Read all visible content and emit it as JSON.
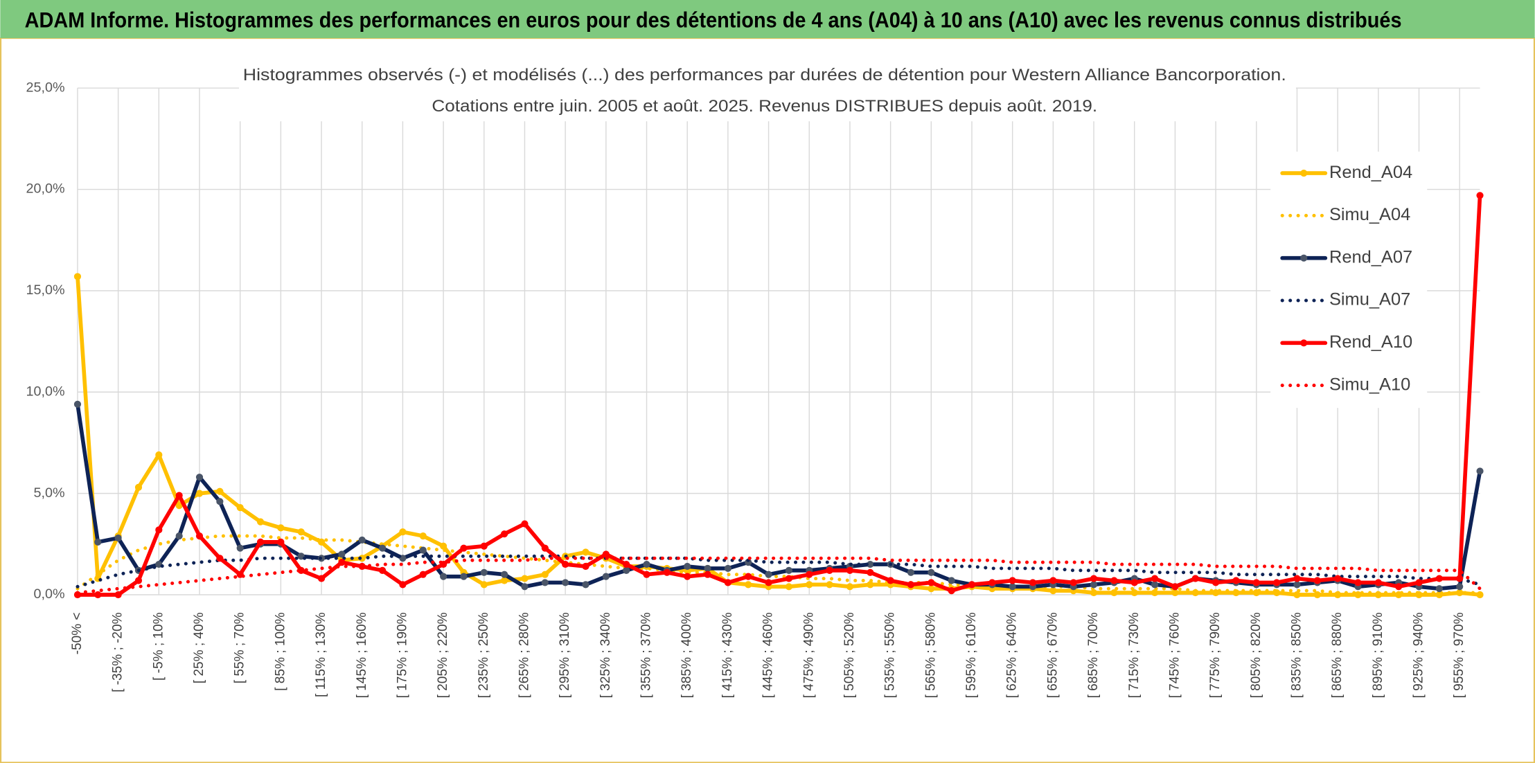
{
  "header": {
    "title": "ADAM Informe. Histogrammes des performances en euros pour des détentions de 4 ans (A04) à 10 ans (A10) avec les revenus connus distribués"
  },
  "chart_data": {
    "type": "line",
    "title": [
      "Histogrammes observés (-) et modélisés (...) des performances par durées de détention pour Western Alliance Bancorporation.",
      "Cotations entre juin. 2005 et août. 2025. Revenus DISTRIBUES depuis août. 2019."
    ],
    "categories": [
      "-50% <",
      null,
      "[ -35% ; -20%",
      null,
      "[ -5% ; 10%",
      null,
      "[ 25% ; 40%",
      null,
      "[ 55% ; 70%",
      null,
      "[ 85% ; 100%",
      null,
      "[ 115% ; 130%",
      null,
      "[ 145% ; 160%",
      null,
      "[ 175% ; 190%",
      null,
      "[ 205% ; 220%",
      null,
      "[ 235% ; 250%",
      null,
      "[ 265% ; 280%",
      null,
      "[ 295% ; 310%",
      null,
      "[ 325% ; 340%",
      null,
      "[ 355% ; 370%",
      null,
      "[ 385% ; 400%",
      null,
      "[ 415% ; 430%",
      null,
      "[ 445% ; 460%",
      null,
      "[ 475% ; 490%",
      null,
      "[ 505% ; 520%",
      null,
      "[ 535% ; 550%",
      null,
      "[ 565% ; 580%",
      null,
      "[ 595% ; 610%",
      null,
      "[ 625% ; 640%",
      null,
      "[ 655% ; 670%",
      null,
      "[ 685% ; 700%",
      null,
      "[ 715% ; 730%",
      null,
      "[ 745% ; 760%",
      null,
      "[ 775% ; 790%",
      null,
      "[ 805% ; 820%",
      null,
      "[ 835% ; 850%",
      null,
      "[ 865% ; 880%",
      null,
      "[ 895% ; 910%",
      null,
      "[ 925% ; 940%",
      null,
      "[ 955% ; 970%",
      null
    ],
    "series": [
      {
        "name": "Rend_A04",
        "color": "#ffc000",
        "marker": "#ffc000",
        "style": "solid",
        "values": [
          15.7,
          0.8,
          2.9,
          5.3,
          6.9,
          4.4,
          5.0,
          5.1,
          4.3,
          3.6,
          3.3,
          3.1,
          2.6,
          1.7,
          1.8,
          2.4,
          3.1,
          2.9,
          2.4,
          1.1,
          0.5,
          0.7,
          0.8,
          1.0,
          1.9,
          2.1,
          1.8,
          1.4,
          1.4,
          1.3,
          1.2,
          1.3,
          0.6,
          0.5,
          0.4,
          0.4,
          0.5,
          0.5,
          0.4,
          0.5,
          0.5,
          0.4,
          0.3,
          0.3,
          0.4,
          0.3,
          0.3,
          0.3,
          0.2,
          0.2,
          0.1,
          0.1,
          0.1,
          0.1,
          0.1,
          0.1,
          0.1,
          0.1,
          0.1,
          0.1,
          0.0,
          0.0,
          0.0,
          0.0,
          0.0,
          0.0,
          0.0,
          0.0,
          0.1,
          0.0
        ]
      },
      {
        "name": "Simu_A04",
        "color": "#ffc000",
        "style": "dotted",
        "values": [
          0.3,
          1.0,
          1.7,
          2.2,
          2.5,
          2.7,
          2.8,
          2.9,
          2.9,
          2.9,
          2.8,
          2.8,
          2.7,
          2.7,
          2.6,
          2.5,
          2.4,
          2.3,
          2.2,
          2.1,
          2.0,
          1.9,
          1.8,
          1.7,
          1.6,
          1.5,
          1.4,
          1.3,
          1.3,
          1.2,
          1.1,
          1.1,
          1.0,
          1.0,
          0.9,
          0.9,
          0.8,
          0.8,
          0.7,
          0.7,
          0.6,
          0.6,
          0.6,
          0.5,
          0.5,
          0.5,
          0.4,
          0.4,
          0.4,
          0.4,
          0.3,
          0.3,
          0.3,
          0.3,
          0.3,
          0.2,
          0.2,
          0.2,
          0.2,
          0.2,
          0.2,
          0.2,
          0.1,
          0.1,
          0.1,
          0.1,
          0.1,
          0.1,
          0.1,
          0.1
        ]
      },
      {
        "name": "Rend_A07",
        "color": "#0e2356",
        "marker": "#4a5568",
        "style": "solid",
        "values": [
          9.4,
          2.6,
          2.8,
          1.2,
          1.5,
          2.9,
          5.8,
          4.6,
          2.3,
          2.5,
          2.5,
          1.9,
          1.8,
          2.0,
          2.7,
          2.3,
          1.8,
          2.2,
          0.9,
          0.9,
          1.1,
          1.0,
          0.4,
          0.6,
          0.6,
          0.5,
          0.9,
          1.2,
          1.5,
          1.2,
          1.4,
          1.3,
          1.3,
          1.6,
          1.0,
          1.2,
          1.2,
          1.3,
          1.4,
          1.5,
          1.5,
          1.1,
          1.1,
          0.7,
          0.5,
          0.5,
          0.4,
          0.4,
          0.5,
          0.4,
          0.5,
          0.6,
          0.8,
          0.5,
          0.4,
          0.8,
          0.7,
          0.6,
          0.5,
          0.5,
          0.5,
          0.6,
          0.7,
          0.4,
          0.5,
          0.6,
          0.4,
          0.3,
          0.4,
          6.1
        ]
      },
      {
        "name": "Simu_A07",
        "color": "#0e2356",
        "style": "dotted",
        "values": [
          0.4,
          0.7,
          1.0,
          1.2,
          1.4,
          1.5,
          1.6,
          1.7,
          1.7,
          1.8,
          1.8,
          1.8,
          1.8,
          1.8,
          1.8,
          1.9,
          1.9,
          1.9,
          1.9,
          1.9,
          1.9,
          1.9,
          1.9,
          1.9,
          1.9,
          1.8,
          1.8,
          1.8,
          1.8,
          1.8,
          1.8,
          1.7,
          1.7,
          1.7,
          1.6,
          1.6,
          1.6,
          1.6,
          1.5,
          1.5,
          1.5,
          1.5,
          1.4,
          1.4,
          1.4,
          1.3,
          1.3,
          1.3,
          1.3,
          1.2,
          1.2,
          1.2,
          1.2,
          1.1,
          1.1,
          1.1,
          1.1,
          1.0,
          1.0,
          1.0,
          1.0,
          1.0,
          0.9,
          0.9,
          0.9,
          0.9,
          0.8,
          0.8,
          0.8,
          0.5
        ]
      },
      {
        "name": "Rend_A10",
        "color": "#ff0000",
        "marker": "#ff0000",
        "style": "solid",
        "values": [
          0.0,
          0.0,
          0.0,
          0.7,
          3.2,
          4.9,
          2.9,
          1.8,
          1.0,
          2.6,
          2.6,
          1.2,
          0.8,
          1.6,
          1.4,
          1.2,
          0.5,
          1.0,
          1.5,
          2.3,
          2.4,
          3.0,
          3.5,
          2.3,
          1.5,
          1.4,
          2.0,
          1.5,
          1.0,
          1.1,
          0.9,
          1.0,
          0.6,
          0.9,
          0.6,
          0.8,
          1.0,
          1.2,
          1.2,
          1.1,
          0.7,
          0.5,
          0.6,
          0.2,
          0.5,
          0.6,
          0.7,
          0.6,
          0.7,
          0.6,
          0.8,
          0.7,
          0.6,
          0.8,
          0.4,
          0.8,
          0.6,
          0.7,
          0.6,
          0.6,
          0.8,
          0.7,
          0.8,
          0.6,
          0.6,
          0.4,
          0.6,
          0.8,
          0.8,
          19.7
        ]
      },
      {
        "name": "Simu_A10",
        "color": "#ff0000",
        "style": "dotted",
        "values": [
          0.1,
          0.2,
          0.3,
          0.4,
          0.5,
          0.6,
          0.7,
          0.8,
          0.9,
          1.0,
          1.1,
          1.2,
          1.3,
          1.4,
          1.4,
          1.5,
          1.5,
          1.6,
          1.6,
          1.7,
          1.7,
          1.7,
          1.7,
          1.8,
          1.8,
          1.8,
          1.8,
          1.8,
          1.8,
          1.8,
          1.8,
          1.8,
          1.8,
          1.8,
          1.8,
          1.8,
          1.8,
          1.8,
          1.8,
          1.8,
          1.7,
          1.7,
          1.7,
          1.7,
          1.7,
          1.7,
          1.6,
          1.6,
          1.6,
          1.6,
          1.6,
          1.5,
          1.5,
          1.5,
          1.5,
          1.5,
          1.4,
          1.4,
          1.4,
          1.4,
          1.3,
          1.3,
          1.3,
          1.3,
          1.2,
          1.2,
          1.2,
          1.2,
          1.2,
          0.3
        ]
      }
    ],
    "ylim": [
      0,
      25
    ],
    "yticks": [
      {
        "value": 0,
        "label": "0,0%"
      },
      {
        "value": 5,
        "label": "5,0%"
      },
      {
        "value": 10,
        "label": "10,0%"
      },
      {
        "value": 15,
        "label": "15,0%"
      },
      {
        "value": 20,
        "label": "20,0%"
      },
      {
        "value": 25,
        "label": "25,0%"
      }
    ],
    "grid": true,
    "legend": "right"
  }
}
